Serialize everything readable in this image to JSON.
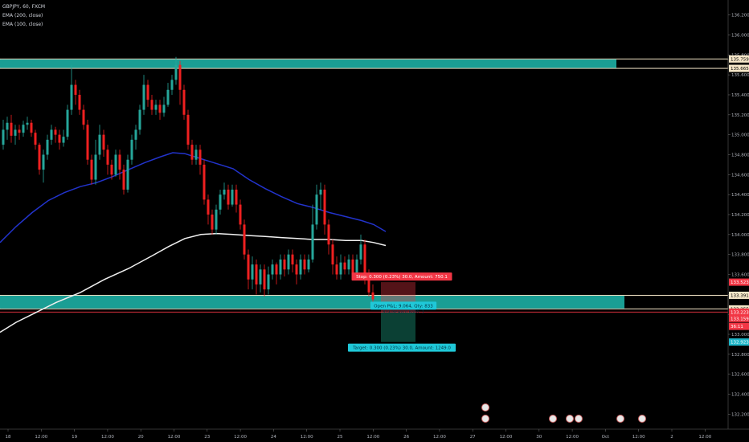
{
  "legend": {
    "symbol": "GBPJPY, 60, FXCM",
    "ema1": "EMA (200, close)",
    "ema2": "EMA (100, close)"
  },
  "chart_data": {
    "type": "candlestick",
    "ylim": [
      132.05,
      136.35
    ],
    "price_ticks": [
      "136.200",
      "136.000",
      "135.800",
      "135.600",
      "135.400",
      "135.200",
      "135.000",
      "134.800",
      "134.600",
      "134.400",
      "134.200",
      "134.000",
      "133.800",
      "133.600",
      "133.400",
      "133.200",
      "133.000",
      "132.800",
      "132.600",
      "132.400",
      "132.200"
    ],
    "x_ticks": [
      "18",
      "12:00",
      "19",
      "12:00",
      "20",
      "12:00",
      "23",
      "12:00",
      "24",
      "12:00",
      "25",
      "12:00",
      "26",
      "12:00",
      "27",
      "12:00",
      "30",
      "12:00",
      "Oct",
      "12:00",
      "2",
      "12:00"
    ],
    "price_labels": [
      {
        "text": "135.759",
        "value": 135.759,
        "color": "#f5e6c8",
        "text_color": "#000000"
      },
      {
        "text": "135.665",
        "value": 135.665,
        "color": "#f5e6c8",
        "text_color": "#000000"
      },
      {
        "text": "133.523",
        "value": 133.523,
        "color": "#f23645",
        "text_color": "#ffffff"
      },
      {
        "text": "133.391",
        "value": 133.391,
        "color": "#f5e6c8",
        "text_color": "#000000"
      },
      {
        "text": "133.255",
        "value": 133.255,
        "color": "#f5e6c8",
        "text_color": "#000000"
      },
      {
        "text": "133.223",
        "value": 133.223,
        "color": "#f23645",
        "text_color": "#ffffff"
      },
      {
        "text": "133.159",
        "value": 133.159,
        "color": "#f23645",
        "text_color": "#ffffff"
      },
      {
        "text": "36:11",
        "value": 133.08,
        "color": "#f23645",
        "text_color": "#ffffff"
      },
      {
        "text": "132.923",
        "value": 132.923,
        "color": "#1fb6c8",
        "text_color": "#ffffff"
      }
    ],
    "zones": [
      {
        "top": 135.759,
        "bottom": 135.665,
        "color": "#1a9e94"
      },
      {
        "top": 133.391,
        "bottom": 133.255,
        "color": "#1a9e94"
      }
    ],
    "position": {
      "entry": 133.223,
      "stop": 133.523,
      "target": 132.923,
      "stop_label": "Stop: 0.300 (0.23%) 30.0, Amount: 750.1",
      "open_label": "Open P&L: 9.064, Qty: 833",
      "rr_label": "Risk/Reward Ratio: 1",
      "target_label": "Target: 0.300 (0.23%) 30.0, Amount: 1249.0"
    },
    "events": [
      {
        "x": 604,
        "n": 2
      },
      {
        "x": 688,
        "n": 1
      },
      {
        "x": 709,
        "n": 1
      },
      {
        "x": 720,
        "n": 1
      },
      {
        "x": 772,
        "n": 1
      },
      {
        "x": 799,
        "n": 1
      }
    ],
    "ema200": [
      [
        0,
        133.02
      ],
      [
        20,
        133.12
      ],
      [
        40,
        133.2
      ],
      [
        70,
        133.32
      ],
      [
        100,
        133.42
      ],
      [
        130,
        133.55
      ],
      [
        160,
        133.66
      ],
      [
        190,
        133.79
      ],
      [
        210,
        133.88
      ],
      [
        230,
        133.96
      ],
      [
        250,
        134.0
      ],
      [
        270,
        134.01
      ],
      [
        290,
        134.0
      ],
      [
        310,
        133.99
      ],
      [
        330,
        133.98
      ],
      [
        350,
        133.97
      ],
      [
        370,
        133.96
      ],
      [
        390,
        133.95
      ],
      [
        410,
        133.95
      ],
      [
        430,
        133.94
      ],
      [
        450,
        133.94
      ],
      [
        465,
        133.92
      ],
      [
        480,
        133.89
      ]
    ],
    "ema100": [
      [
        0,
        133.92
      ],
      [
        20,
        134.08
      ],
      [
        40,
        134.22
      ],
      [
        60,
        134.34
      ],
      [
        80,
        134.42
      ],
      [
        100,
        134.48
      ],
      [
        120,
        134.52
      ],
      [
        140,
        134.58
      ],
      [
        160,
        134.65
      ],
      [
        180,
        134.72
      ],
      [
        200,
        134.78
      ],
      [
        215,
        134.82
      ],
      [
        230,
        134.81
      ],
      [
        250,
        134.76
      ],
      [
        270,
        134.71
      ],
      [
        290,
        134.66
      ],
      [
        310,
        134.55
      ],
      [
        330,
        134.46
      ],
      [
        350,
        134.38
      ],
      [
        370,
        134.31
      ],
      [
        390,
        134.27
      ],
      [
        410,
        134.22
      ],
      [
        430,
        134.18
      ],
      [
        450,
        134.14
      ],
      [
        465,
        134.1
      ],
      [
        480,
        134.03
      ]
    ],
    "candles": [
      [
        134.9,
        135.05,
        134.85,
        135.15
      ],
      [
        135.05,
        135.12,
        134.95,
        135.18
      ],
      [
        135.12,
        134.99,
        134.92,
        135.2
      ],
      [
        134.99,
        135.05,
        134.9,
        135.1
      ],
      [
        135.05,
        135.02,
        134.95,
        135.1
      ],
      [
        135.02,
        135.1,
        134.98,
        135.14
      ],
      [
        135.1,
        135.12,
        135.05,
        135.18
      ],
      [
        135.12,
        135.02,
        134.98,
        135.15
      ],
      [
        135.02,
        134.9,
        134.85,
        135.05
      ],
      [
        134.9,
        134.65,
        134.6,
        134.92
      ],
      [
        134.65,
        134.8,
        134.52,
        134.85
      ],
      [
        134.8,
        134.95,
        134.75,
        135.0
      ],
      [
        134.95,
        135.05,
        134.9,
        135.1
      ],
      [
        135.05,
        135.0,
        134.92,
        135.08
      ],
      [
        135.0,
        134.92,
        134.85,
        135.05
      ],
      [
        134.92,
        134.98,
        134.88,
        135.05
      ],
      [
        134.98,
        135.25,
        134.95,
        135.3
      ],
      [
        135.25,
        135.5,
        135.2,
        135.7
      ],
      [
        135.5,
        135.4,
        135.3,
        135.55
      ],
      [
        135.4,
        135.25,
        135.2,
        135.45
      ],
      [
        135.25,
        135.1,
        135.05,
        135.3
      ],
      [
        135.1,
        134.75,
        134.7,
        135.15
      ],
      [
        134.75,
        134.55,
        134.5,
        134.8
      ],
      [
        134.55,
        134.8,
        134.5,
        134.95
      ],
      [
        134.8,
        135.0,
        134.75,
        135.1
      ],
      [
        135.0,
        134.85,
        134.78,
        135.05
      ],
      [
        134.85,
        134.7,
        134.6,
        134.9
      ],
      [
        134.7,
        134.6,
        134.55,
        134.75
      ],
      [
        134.6,
        134.8,
        134.58,
        134.85
      ],
      [
        134.8,
        134.65,
        134.55,
        134.85
      ],
      [
        134.65,
        134.45,
        134.4,
        134.7
      ],
      [
        134.45,
        134.75,
        134.42,
        134.8
      ],
      [
        134.75,
        134.95,
        134.7,
        135.0
      ],
      [
        134.95,
        135.05,
        134.85,
        135.1
      ],
      [
        135.05,
        135.25,
        135.0,
        135.3
      ],
      [
        135.25,
        135.5,
        135.2,
        135.6
      ],
      [
        135.5,
        135.35,
        135.28,
        135.55
      ],
      [
        135.35,
        135.25,
        135.2,
        135.4
      ],
      [
        135.25,
        135.3,
        135.2,
        135.35
      ],
      [
        135.3,
        135.22,
        135.15,
        135.35
      ],
      [
        135.22,
        135.3,
        135.18,
        135.38
      ],
      [
        135.3,
        135.45,
        135.28,
        135.52
      ],
      [
        135.45,
        135.55,
        135.4,
        135.6
      ],
      [
        135.55,
        135.7,
        135.5,
        135.78
      ],
      [
        135.7,
        135.45,
        135.3,
        135.74
      ],
      [
        135.45,
        135.2,
        135.15,
        135.5
      ],
      [
        135.2,
        134.9,
        134.85,
        135.25
      ],
      [
        134.9,
        134.75,
        134.7,
        134.95
      ],
      [
        134.75,
        134.85,
        134.7,
        134.9
      ],
      [
        134.85,
        134.7,
        134.6,
        134.9
      ],
      [
        134.7,
        134.35,
        134.3,
        134.75
      ],
      [
        134.35,
        134.2,
        134.1,
        134.4
      ],
      [
        134.2,
        134.05,
        134.0,
        134.25
      ],
      [
        134.05,
        134.25,
        134.0,
        134.3
      ],
      [
        134.25,
        134.4,
        134.2,
        134.45
      ],
      [
        134.4,
        134.45,
        134.35,
        134.52
      ],
      [
        134.45,
        134.3,
        134.25,
        134.5
      ],
      [
        134.3,
        134.45,
        134.28,
        134.5
      ],
      [
        134.45,
        134.3,
        134.22,
        134.5
      ],
      [
        134.3,
        134.1,
        134.05,
        134.35
      ],
      [
        134.1,
        133.8,
        133.75,
        134.15
      ],
      [
        133.8,
        133.55,
        133.45,
        133.85
      ],
      [
        133.55,
        133.7,
        133.45,
        133.78
      ],
      [
        133.7,
        133.5,
        133.4,
        133.75
      ],
      [
        133.5,
        133.65,
        133.42,
        133.7
      ],
      [
        133.65,
        133.45,
        133.38,
        133.7
      ],
      [
        133.45,
        133.6,
        133.4,
        133.68
      ],
      [
        133.6,
        133.7,
        133.55,
        133.75
      ],
      [
        133.7,
        133.6,
        133.5,
        133.72
      ],
      [
        133.6,
        133.75,
        133.55,
        133.8
      ],
      [
        133.75,
        133.65,
        133.58,
        133.8
      ],
      [
        133.65,
        133.8,
        133.6,
        133.85
      ],
      [
        133.8,
        133.7,
        133.62,
        133.85
      ],
      [
        133.7,
        133.6,
        133.5,
        133.75
      ],
      [
        133.6,
        133.75,
        133.55,
        133.8
      ],
      [
        133.75,
        133.65,
        133.6,
        133.8
      ],
      [
        133.65,
        133.75,
        133.62,
        133.8
      ],
      [
        133.75,
        134.1,
        133.72,
        134.3
      ],
      [
        134.1,
        134.4,
        134.05,
        134.5
      ],
      [
        134.4,
        134.45,
        134.25,
        134.52
      ],
      [
        134.45,
        134.1,
        134.0,
        134.5
      ],
      [
        134.1,
        133.9,
        133.8,
        134.15
      ],
      [
        133.9,
        133.7,
        133.6,
        133.95
      ],
      [
        133.7,
        133.6,
        133.55,
        133.78
      ],
      [
        133.6,
        133.72,
        133.55,
        133.8
      ],
      [
        133.72,
        133.65,
        133.6,
        133.78
      ],
      [
        133.65,
        133.75,
        133.6,
        133.8
      ],
      [
        133.75,
        133.6,
        133.55,
        133.8
      ],
      [
        133.6,
        133.75,
        133.55,
        133.8
      ],
      [
        133.75,
        133.9,
        133.7,
        134.0
      ],
      [
        133.9,
        133.6,
        133.5,
        133.95
      ],
      [
        133.6,
        133.42,
        133.38,
        133.65
      ],
      [
        133.42,
        133.35,
        133.3,
        133.5
      ]
    ]
  }
}
